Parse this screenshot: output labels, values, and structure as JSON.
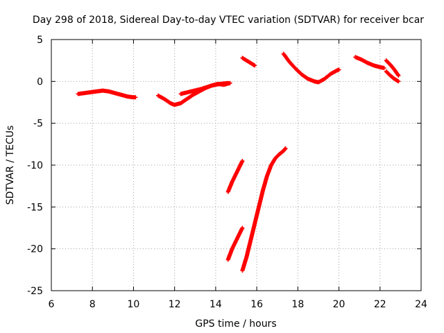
{
  "chart_data": {
    "type": "scatter",
    "title": "Day 298 of 2018, Sidereal Day-to-day VTEC variation (SDTVAR) for receiver bcar",
    "xlabel": "GPS time / hours",
    "ylabel": "SDTVAR / TECUs",
    "xlim": [
      6,
      24
    ],
    "ylim": [
      -25,
      5
    ],
    "xticks": [
      "6",
      "8",
      "10",
      "12",
      "14",
      "16",
      "18",
      "20",
      "22",
      "24"
    ],
    "yticks": [
      "5",
      "0",
      "-5",
      "-10",
      "-15",
      "-20",
      "-25"
    ],
    "grid": true,
    "marker": "+",
    "color": "#ff0000",
    "series": [
      {
        "name": "arc-1",
        "x": [
          7.3,
          7.6,
          7.9,
          8.2,
          8.5,
          8.8,
          9.1,
          9.4,
          9.7,
          10.0,
          10.1
        ],
        "y": [
          -1.5,
          -1.4,
          -1.3,
          -1.2,
          -1.1,
          -1.2,
          -1.4,
          -1.6,
          -1.8,
          -1.9,
          -1.9
        ]
      },
      {
        "name": "arc-2",
        "x": [
          11.2,
          11.5,
          11.8,
          12.0,
          12.3,
          12.6,
          12.9,
          13.2,
          13.5,
          13.8,
          14.1,
          14.4,
          14.7
        ],
        "y": [
          -1.7,
          -2.1,
          -2.6,
          -2.8,
          -2.6,
          -2.1,
          -1.6,
          -1.2,
          -0.8,
          -0.5,
          -0.3,
          -0.4,
          -0.2
        ]
      },
      {
        "name": "arc-3",
        "x": [
          12.3,
          12.8,
          13.3,
          13.8,
          14.2,
          14.6
        ],
        "y": [
          -1.5,
          -1.2,
          -0.9,
          -0.5,
          -0.3,
          -0.2
        ]
      },
      {
        "name": "arc-4",
        "x": [
          15.3,
          15.5,
          15.7,
          15.9
        ],
        "y": [
          2.8,
          2.5,
          2.2,
          1.9
        ]
      },
      {
        "name": "arc-5",
        "x": [
          17.3,
          17.6,
          17.9,
          18.2,
          18.5,
          18.8,
          19.0,
          19.3,
          19.6,
          19.9,
          20.0
        ],
        "y": [
          3.3,
          2.3,
          1.5,
          0.8,
          0.3,
          0.0,
          -0.1,
          0.3,
          0.9,
          1.3,
          1.4
        ]
      },
      {
        "name": "arc-6",
        "x": [
          20.8,
          21.1,
          21.4,
          21.7,
          22.0,
          22.2
        ],
        "y": [
          2.9,
          2.6,
          2.2,
          1.9,
          1.7,
          1.6
        ]
      },
      {
        "name": "arc-7",
        "x": [
          22.3,
          22.5,
          22.7,
          22.9
        ],
        "y": [
          2.5,
          2.0,
          1.4,
          0.7
        ]
      },
      {
        "name": "arc-8",
        "x": [
          22.3,
          22.5,
          22.7,
          22.9
        ],
        "y": [
          1.2,
          0.7,
          0.3,
          0.0
        ]
      },
      {
        "name": "arc-9",
        "x": [
          14.6,
          14.8,
          15.0,
          15.2,
          15.3
        ],
        "y": [
          -13.2,
          -12.0,
          -11.0,
          -10.0,
          -9.5
        ]
      },
      {
        "name": "arc-10",
        "x": [
          14.6,
          14.8,
          15.0,
          15.2,
          15.3
        ],
        "y": [
          -21.3,
          -20.0,
          -19.0,
          -18.0,
          -17.5
        ]
      },
      {
        "name": "arc-11",
        "x": [
          15.3,
          15.5,
          15.7,
          15.9,
          16.1,
          16.3,
          16.5,
          16.7,
          16.9,
          17.1,
          17.3,
          17.4
        ],
        "y": [
          -22.6,
          -21.0,
          -19.0,
          -17.0,
          -15.0,
          -13.0,
          -11.3,
          -10.0,
          -9.2,
          -8.7,
          -8.3,
          -8.0
        ]
      }
    ]
  }
}
